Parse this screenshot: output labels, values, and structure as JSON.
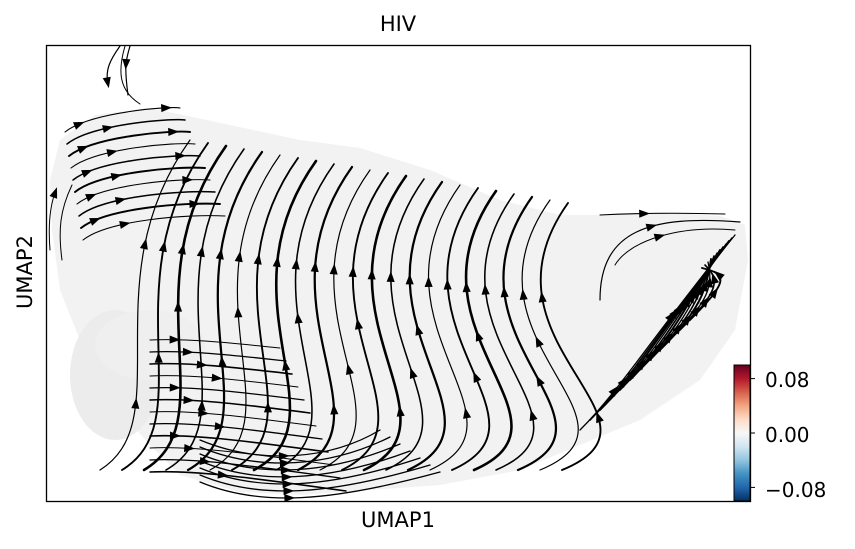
{
  "chart_data": {
    "type": "scatter",
    "subtype": "velocity-stream-plot",
    "title": "HIV",
    "xlabel": "UMAP1",
    "ylabel": "UMAP2",
    "x_ticks": [],
    "y_ticks": [],
    "grid": false,
    "stream_color": "#000000",
    "cell_color": "#f2f2f2",
    "colorbar": {
      "colormap": "RdBu_r",
      "range": [
        -0.1,
        0.1
      ],
      "ticks": [
        {
          "value": 0.08,
          "label": "0.08"
        },
        {
          "value": 0.0,
          "label": "0.00"
        },
        {
          "value": -0.08,
          "label": "−0.08"
        }
      ],
      "colors": [
        "#67001f",
        "#b2182b",
        "#d6604d",
        "#f4a582",
        "#fddbc7",
        "#f7f7f7",
        "#d1e5f0",
        "#92c5de",
        "#4393c3",
        "#2166ac",
        "#053061"
      ]
    }
  }
}
